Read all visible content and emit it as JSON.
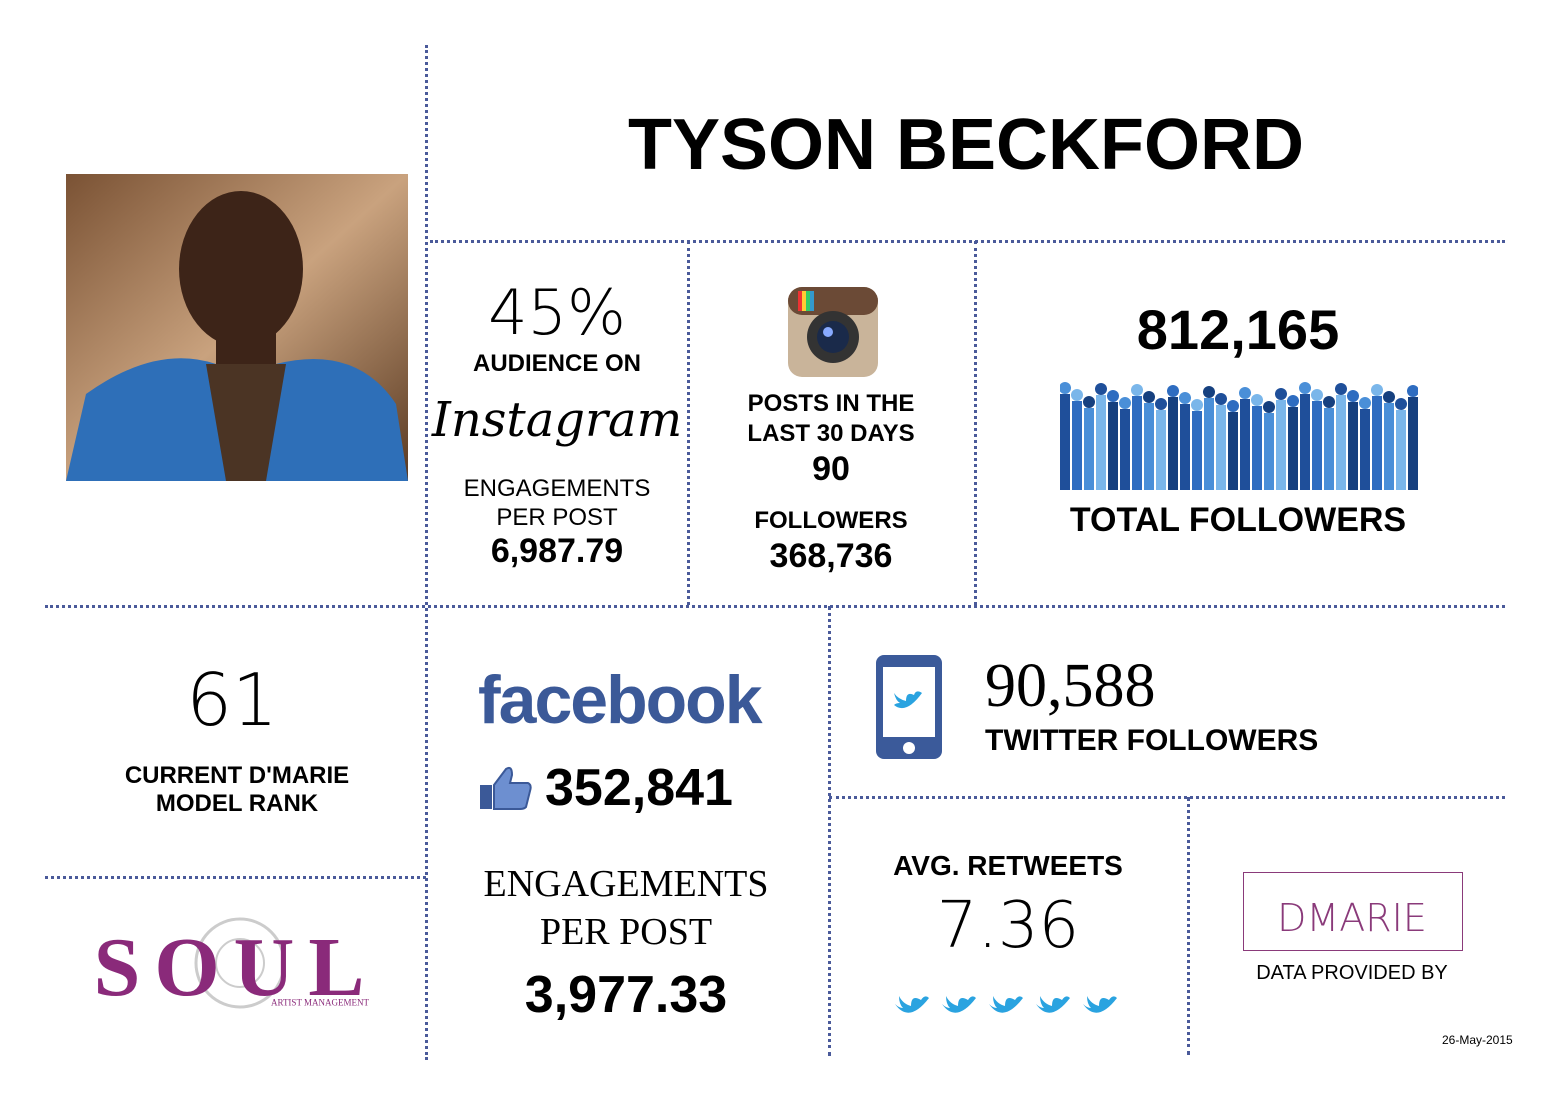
{
  "header": {
    "title": "TYSON BECKFORD"
  },
  "instagram": {
    "audience": "45%",
    "audience_label": "AUDIENCE ON",
    "platform": "Instagram",
    "engagements_lines": [
      "ENGAGEMENTS",
      "PER POST"
    ],
    "engagements": "6,987.79",
    "posts_lines": [
      "POSTS IN THE",
      "LAST 30 DAYS"
    ],
    "posts": "90",
    "followers_label": "FOLLOWERS",
    "followers": "368,736"
  },
  "total": {
    "followers": "812,165",
    "label": "TOTAL FOLLOWERS"
  },
  "rank": {
    "value": "61",
    "lines": [
      "CURRENT D'MARIE",
      "MODEL RANK"
    ]
  },
  "facebook": {
    "platform": "facebook",
    "likes": "352,841",
    "engagements_lines": [
      "ENGAGEMENTS",
      "PER POST"
    ],
    "engagements": "3,977.33"
  },
  "twitter": {
    "followers": "90,588",
    "followers_label": "TWITTER FOLLOWERS",
    "retweets_label": "AVG. RETWEETS",
    "retweets": "7.36"
  },
  "footer": {
    "soul": "SOUL",
    "soul_sub": "ARTIST MANAGEMENT",
    "dmarie": "DMARIE",
    "provided_by": "DATA PROVIDED BY",
    "date": "26-May-2015"
  }
}
